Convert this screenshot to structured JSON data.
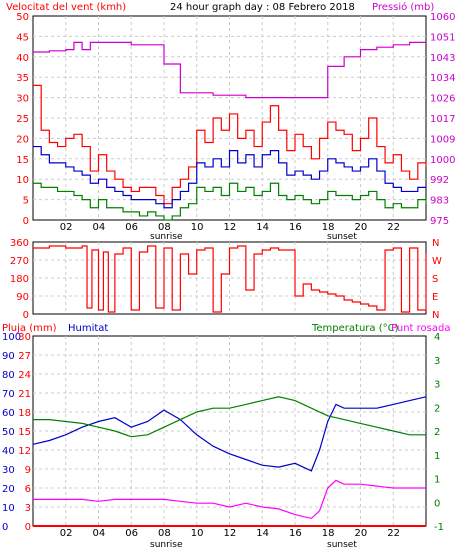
{
  "header": {
    "wind_label": "Velocitat del vent (kmh)",
    "title": "24 hour graph day : 08 Febrero 2018",
    "pressure_label": "Pressió (mb)"
  },
  "colors": {
    "wind_speed": "#ff0000",
    "wind_gust": "#cc0000",
    "wind_avg": "#0000cc",
    "wind_green": "#008000",
    "pressure": "#cc00cc",
    "direction": "#ff0000",
    "humidity": "#0000cc",
    "temperature": "#008000",
    "dewpoint": "#ff00ff",
    "rain": "#ff0000",
    "grid": "#cccccc",
    "frame": "#000000"
  },
  "x_ticks": [
    "02",
    "04",
    "06",
    "08",
    "10",
    "12",
    "14",
    "16",
    "18",
    "20",
    "22"
  ],
  "x_markers": {
    "sunrise": "sunrise",
    "sunset": "sunset"
  },
  "panel1": {
    "left_ticks": [
      "0",
      "5",
      "10",
      "15",
      "20",
      "25",
      "30",
      "35",
      "40",
      "45",
      "50"
    ],
    "right_ticks": [
      "975",
      "983",
      "992",
      "1000",
      "1009",
      "1017",
      "1026",
      "1034",
      "1043",
      "1051",
      "1060"
    ]
  },
  "panel2": {
    "left_ticks": [
      "0",
      "90",
      "180",
      "270",
      "360"
    ],
    "right_ticks": [
      "N",
      "E",
      "S",
      "W",
      "N"
    ]
  },
  "panel3": {
    "rain_label": "Pluja (mm)",
    "humidity_label": "Humitat",
    "temp_label": "Temperatura (°C)",
    "dew_label": "Punt rosada",
    "hum_ticks": [
      "0",
      "10",
      "20",
      "30",
      "40",
      "50",
      "60",
      "70",
      "80",
      "90",
      "100"
    ],
    "rain_ticks": [
      "0",
      "3",
      "6",
      "9",
      "12",
      "15",
      "18",
      "21",
      "24",
      "27",
      "30"
    ],
    "temp_ticks": [
      "-1",
      "0",
      "1",
      "1",
      "2",
      "2",
      "3",
      "3",
      "4"
    ]
  },
  "chart_data": [
    {
      "type": "line",
      "title": "24 hour graph day : 08 Febrero 2018",
      "ylabel": "Velocitat del vent (kmh)",
      "y2label": "Pressió (mb)",
      "xlim": [
        0,
        24
      ],
      "ylim": [
        0,
        50
      ],
      "y2lim": [
        975,
        1060
      ],
      "grid": true,
      "series": [
        {
          "name": "wind_gust",
          "x": [
            0,
            0.5,
            1,
            1.5,
            2,
            2.5,
            3,
            3.5,
            4,
            4.5,
            5,
            5.5,
            6,
            6.5,
            7,
            7.5,
            8,
            8.5,
            9,
            9.5,
            10,
            10.5,
            11,
            11.5,
            12,
            12.5,
            13,
            13.5,
            14,
            14.5,
            15,
            15.5,
            16,
            16.5,
            17,
            17.5,
            18,
            18.5,
            19,
            19.5,
            20,
            20.5,
            21,
            21.5,
            22,
            22.5,
            23,
            23.5,
            24
          ],
          "y": [
            33,
            22,
            19,
            18,
            20,
            21,
            18,
            12,
            16,
            12,
            10,
            8,
            7,
            8,
            8,
            6,
            4,
            8,
            10,
            13,
            22,
            19,
            25,
            22,
            26,
            20,
            22,
            18,
            24,
            28,
            22,
            17,
            21,
            18,
            15,
            20,
            24,
            22,
            21,
            17,
            20,
            25,
            18,
            14,
            16,
            12,
            10,
            14,
            13
          ]
        },
        {
          "name": "wind_avg",
          "x": [
            0,
            0.5,
            1,
            1.5,
            2,
            2.5,
            3,
            3.5,
            4,
            4.5,
            5,
            5.5,
            6,
            6.5,
            7,
            7.5,
            8,
            8.5,
            9,
            9.5,
            10,
            10.5,
            11,
            11.5,
            12,
            12.5,
            13,
            13.5,
            14,
            14.5,
            15,
            15.5,
            16,
            16.5,
            17,
            17.5,
            18,
            18.5,
            19,
            19.5,
            20,
            20.5,
            21,
            21.5,
            22,
            22.5,
            23,
            23.5,
            24
          ],
          "y": [
            18,
            16,
            14,
            14,
            13,
            12,
            11,
            9,
            10,
            8,
            7,
            6,
            5,
            5,
            5,
            4,
            3,
            5,
            7,
            9,
            14,
            13,
            15,
            13,
            17,
            14,
            16,
            13,
            16,
            17,
            14,
            11,
            12,
            11,
            10,
            12,
            15,
            14,
            13,
            12,
            13,
            15,
            12,
            9,
            8,
            7,
            7,
            8,
            8
          ]
        },
        {
          "name": "wind_min",
          "x": [
            0,
            0.5,
            1,
            1.5,
            2,
            2.5,
            3,
            3.5,
            4,
            4.5,
            5,
            5.5,
            6,
            6.5,
            7,
            7.5,
            8,
            8.5,
            9,
            9.5,
            10,
            10.5,
            11,
            11.5,
            12,
            12.5,
            13,
            13.5,
            14,
            14.5,
            15,
            15.5,
            16,
            16.5,
            17,
            17.5,
            18,
            18.5,
            19,
            19.5,
            20,
            20.5,
            21,
            21.5,
            22,
            22.5,
            23,
            23.5,
            24
          ],
          "y": [
            9,
            8,
            8,
            7,
            7,
            6,
            5,
            3,
            5,
            3,
            3,
            2,
            2,
            1,
            2,
            1,
            0,
            1,
            3,
            4,
            8,
            7,
            8,
            6,
            9,
            7,
            8,
            6,
            7,
            9,
            6,
            5,
            6,
            5,
            4,
            5,
            7,
            6,
            6,
            5,
            6,
            7,
            5,
            3,
            4,
            3,
            3,
            5,
            4
          ]
        },
        {
          "name": "pressure",
          "axis": "right",
          "x": [
            0,
            1,
            2,
            2.5,
            3,
            3.5,
            4,
            6,
            7,
            8,
            9,
            10,
            11,
            12,
            13,
            14,
            15,
            16,
            17,
            17.3,
            18,
            19,
            20,
            21,
            22,
            23,
            24
          ],
          "y": [
            1045,
            1045.5,
            1046,
            1049,
            1046,
            1049,
            1049,
            1048,
            1048,
            1040,
            1028,
            1028,
            1027,
            1027,
            1026,
            1026,
            1026,
            1026,
            1026,
            1026,
            1039,
            1043,
            1046,
            1047,
            1048,
            1049,
            1049
          ]
        }
      ]
    },
    {
      "type": "line",
      "ylabel": "Wind direction",
      "xlim": [
        0,
        24
      ],
      "ylim": [
        0,
        360
      ],
      "series": [
        {
          "name": "direction",
          "x": [
            0,
            1,
            2,
            3,
            3.3,
            3.6,
            4,
            4.3,
            4.6,
            5,
            5.5,
            6,
            6.5,
            7,
            7.5,
            8,
            8.5,
            9,
            9.5,
            10,
            10.5,
            11,
            11.5,
            12,
            12.5,
            13,
            13.5,
            14,
            14.5,
            15,
            15.5,
            16,
            16.5,
            17,
            17.5,
            18,
            18.5,
            19,
            19.5,
            20,
            20.5,
            21,
            21.5,
            22,
            22.5,
            23,
            23.5,
            24
          ],
          "y": [
            330,
            340,
            330,
            340,
            30,
            320,
            20,
            310,
            10,
            300,
            330,
            20,
            310,
            340,
            30,
            330,
            20,
            300,
            200,
            320,
            330,
            10,
            200,
            330,
            340,
            120,
            300,
            320,
            330,
            320,
            320,
            90,
            150,
            120,
            110,
            100,
            90,
            70,
            60,
            50,
            40,
            20,
            320,
            330,
            10,
            330,
            20,
            300
          ]
        }
      ]
    },
    {
      "type": "line",
      "ylabel": "Humitat",
      "y2label": "Temperatura (°C)",
      "xlim": [
        0,
        24
      ],
      "ylim": [
        0,
        100
      ],
      "y2lim": [
        -1,
        4
      ],
      "series": [
        {
          "name": "humidity",
          "x": [
            0,
            1,
            2,
            3,
            4,
            5,
            6,
            7,
            8,
            9,
            10,
            11,
            12,
            13,
            14,
            15,
            16,
            17,
            17.5,
            18,
            18.5,
            19,
            20,
            21,
            22,
            23,
            24
          ],
          "y": [
            43,
            45,
            48,
            52,
            55,
            57,
            52,
            55,
            61,
            56,
            48,
            42,
            38,
            35,
            32,
            31,
            33,
            29,
            40,
            55,
            64,
            62,
            62,
            62,
            64,
            66,
            68
          ]
        },
        {
          "name": "temperature",
          "x": [
            0,
            1,
            2,
            3,
            4,
            5,
            6,
            7,
            8,
            9,
            10,
            11,
            12,
            13,
            14,
            15,
            16,
            17,
            18,
            19,
            20,
            21,
            22,
            23,
            24
          ],
          "y": [
            1.8,
            1.8,
            1.75,
            1.7,
            1.6,
            1.5,
            1.35,
            1.4,
            1.6,
            1.8,
            2.0,
            2.1,
            2.1,
            2.2,
            2.3,
            2.4,
            2.3,
            2.1,
            1.9,
            1.8,
            1.7,
            1.6,
            1.5,
            1.4,
            1.4
          ]
        },
        {
          "name": "dewpoint",
          "x": [
            0,
            1,
            2,
            3,
            4,
            5,
            6,
            7,
            8,
            9,
            10,
            11,
            12,
            13,
            14,
            15,
            16,
            17,
            17.5,
            18,
            18.5,
            19,
            20,
            21,
            22,
            23,
            24
          ],
          "y": [
            -0.3,
            -0.3,
            -0.3,
            -0.3,
            -0.35,
            -0.3,
            -0.3,
            -0.3,
            -0.3,
            -0.35,
            -0.4,
            -0.4,
            -0.5,
            -0.4,
            -0.5,
            -0.55,
            -0.7,
            -0.8,
            -0.6,
            0.0,
            0.2,
            0.1,
            0.1,
            0.05,
            0.0,
            0.0,
            0.0
          ]
        },
        {
          "name": "rain",
          "x": [
            0,
            24
          ],
          "y": [
            0,
            0
          ]
        }
      ]
    }
  ]
}
